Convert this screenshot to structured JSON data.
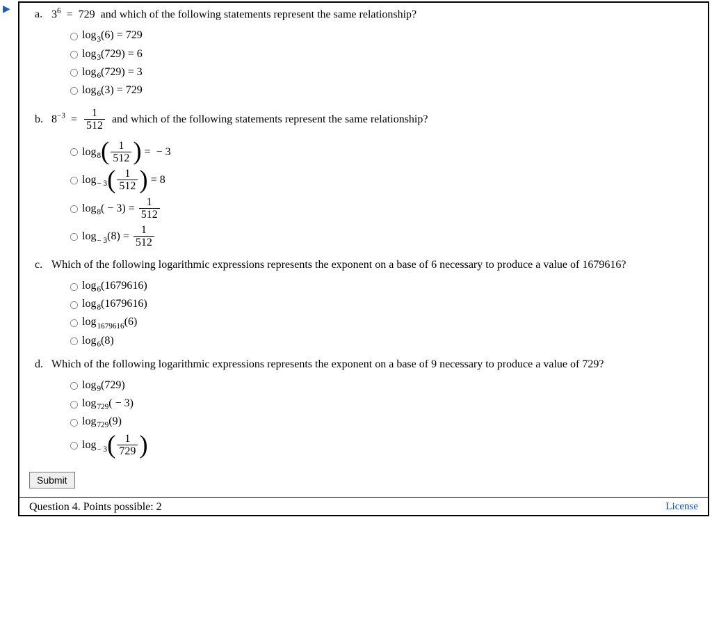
{
  "indicator_glyph": "▶",
  "colors": {
    "indicator": "#1a5fb4",
    "link": "#0645ad",
    "text": "#000000",
    "border": "#000000",
    "bg": "#ffffff"
  },
  "parts": {
    "a": {
      "letter": "a.",
      "stmt": {
        "base": "3",
        "exp": "6",
        "eq": "=",
        "rhs": "729",
        "tail": "and which of the following statements represent the same relationship?"
      },
      "choices": [
        {
          "kind": "plain",
          "base": "3",
          "arg": "6",
          "rhs": "729"
        },
        {
          "kind": "plain",
          "base": "3",
          "arg": "729",
          "rhs": "6"
        },
        {
          "kind": "plain",
          "base": "6",
          "arg": "729",
          "rhs": "3"
        },
        {
          "kind": "plain",
          "base": "6",
          "arg": "3",
          "rhs": "729"
        }
      ]
    },
    "b": {
      "letter": "b.",
      "stmt": {
        "base": "8",
        "exp": "−3",
        "eq": "=",
        "frac_n": "1",
        "frac_d": "512",
        "tail": "and which of the following statements represent the same relationship?"
      },
      "choices": [
        {
          "kind": "pfrac",
          "base": "8",
          "frac_n": "1",
          "frac_d": "512",
          "rhs": " − 3"
        },
        {
          "kind": "pfrac",
          "base": "− 3",
          "frac_n": "1",
          "frac_d": "512",
          "rhs": "8"
        },
        {
          "kind": "arg_neg",
          "base": "8",
          "arg": "− 3",
          "rfrac_n": "1",
          "rfrac_d": "512"
        },
        {
          "kind": "rhs_frac",
          "base": "− 3",
          "arg": "8",
          "rfrac_n": "1",
          "rfrac_d": "512"
        }
      ]
    },
    "c": {
      "letter": "c.",
      "text": "Which of the following logarithmic expressions represents the exponent on a base of 6 necessary to produce a value of 1679616?",
      "choices": [
        {
          "kind": "simple",
          "base": "6",
          "arg": "1679616"
        },
        {
          "kind": "simple",
          "base": "8",
          "arg": "1679616"
        },
        {
          "kind": "simple",
          "base": "1679616",
          "arg": "6"
        },
        {
          "kind": "simple",
          "base": "6",
          "arg": "8"
        }
      ]
    },
    "d": {
      "letter": "d.",
      "text": "Which of the following logarithmic expressions represents the exponent on a base of 9 necessary to produce a value of 729?",
      "choices": [
        {
          "kind": "simple",
          "base": "9",
          "arg": "729"
        },
        {
          "kind": "arg_neg",
          "base": "729",
          "arg": "− 3",
          "no_rhs": true
        },
        {
          "kind": "simple",
          "base": "729",
          "arg": "9"
        },
        {
          "kind": "pfrac",
          "base": "− 3",
          "frac_n": "1",
          "frac_d": "729",
          "no_rhs": true
        }
      ]
    }
  },
  "submit_label": "Submit",
  "footer": {
    "question": "Question 4. Points possible: 2",
    "license": "License"
  }
}
